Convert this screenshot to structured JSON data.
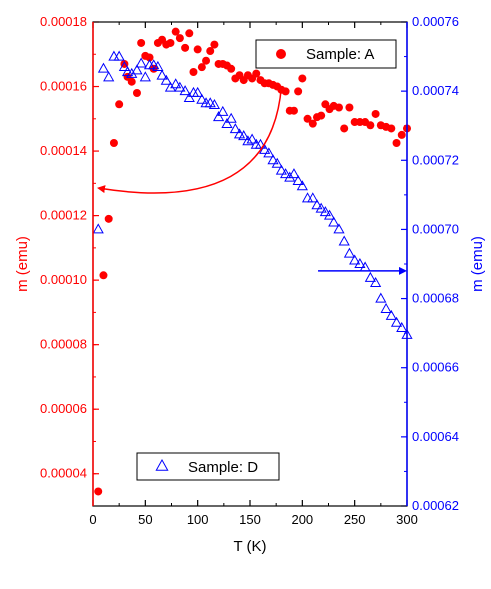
{
  "chart_data": {
    "type": "scatter",
    "xlabel": "T (K)",
    "ylabel_left": "m (emu)",
    "ylabel_right": "m (emu)",
    "xlim": [
      0,
      300
    ],
    "ylim_left": [
      3e-05,
      0.00018
    ],
    "ylim_right": [
      0.00062,
      0.00076
    ],
    "x_ticks": [
      "0",
      "50",
      "100",
      "150",
      "200",
      "250",
      "300"
    ],
    "y_left_ticks": [
      "0.00004",
      "0.00006",
      "0.00008",
      "0.00010",
      "0.00012",
      "0.00014",
      "0.00016",
      "0.00018"
    ],
    "y_right_ticks": [
      "0.00062",
      "0.00064",
      "0.00066",
      "0.00068",
      "0.00070",
      "0.00072",
      "0.00074",
      "0.00076"
    ],
    "colors": {
      "left_axis": "#ff0000",
      "right_axis": "#0000ff",
      "frame": "#000000"
    },
    "grid": false,
    "series": [
      {
        "name": "Sample: A",
        "axis": "left",
        "marker": "filled-circle",
        "color": "#ff0000",
        "legend_position": "top-right",
        "x": [
          5,
          10,
          15,
          20,
          25,
          30,
          33,
          37,
          42,
          46,
          50,
          54,
          58,
          62,
          66,
          70,
          74,
          79,
          83,
          88,
          92,
          96,
          100,
          104,
          108,
          112,
          116,
          120,
          124,
          128,
          132,
          136,
          140,
          144,
          148,
          152,
          156,
          160,
          164,
          168,
          172,
          176,
          180,
          184,
          188,
          192,
          196,
          200,
          205,
          210,
          214,
          218,
          222,
          226,
          230,
          235,
          240,
          245,
          250,
          255,
          260,
          265,
          270,
          275,
          280,
          285,
          290,
          295,
          300
        ],
        "y": [
          3.45e-05,
          0.0001015,
          0.000119,
          0.0001425,
          0.0001545,
          0.000167,
          0.000163,
          0.0001615,
          0.000158,
          0.0001735,
          0.0001695,
          0.000169,
          0.0001655,
          0.0001735,
          0.0001745,
          0.000173,
          0.0001735,
          0.000177,
          0.000175,
          0.000172,
          0.0001765,
          0.0001645,
          0.0001715,
          0.000166,
          0.000168,
          0.000171,
          0.000173,
          0.000167,
          0.000167,
          0.0001665,
          0.0001655,
          0.0001625,
          0.0001635,
          0.000162,
          0.0001635,
          0.0001625,
          0.000164,
          0.000162,
          0.000161,
          0.000161,
          0.0001605,
          0.00016,
          0.000159,
          0.0001585,
          0.0001525,
          0.0001525,
          0.0001585,
          0.0001625,
          0.00015,
          0.0001485,
          0.0001505,
          0.000151,
          0.0001545,
          0.000153,
          0.000154,
          0.0001535,
          0.000147,
          0.0001535,
          0.000149,
          0.000149,
          0.000149,
          0.000148,
          0.0001515,
          0.000148,
          0.0001475,
          0.000147,
          0.0001425,
          0.000145,
          0.000147
        ]
      },
      {
        "name": "Sample: D",
        "axis": "right",
        "marker": "open-triangle",
        "color": "#0000ff",
        "legend_position": "bottom-left",
        "x": [
          5,
          10,
          15,
          20,
          25,
          30,
          33,
          37,
          42,
          46,
          50,
          54,
          58,
          62,
          66,
          70,
          74,
          79,
          83,
          88,
          92,
          96,
          100,
          104,
          108,
          112,
          116,
          120,
          124,
          128,
          132,
          136,
          140,
          144,
          148,
          152,
          156,
          160,
          164,
          168,
          172,
          176,
          180,
          184,
          188,
          192,
          196,
          200,
          205,
          210,
          214,
          218,
          222,
          226,
          230,
          235,
          240,
          245,
          250,
          255,
          260,
          265,
          270,
          275,
          280,
          285,
          290,
          295,
          300
        ],
        "y": [
          0.0007,
          0.0007465,
          0.000744,
          0.00075,
          0.00075,
          0.000747,
          0.0007455,
          0.000745,
          0.000746,
          0.000748,
          0.000744,
          0.0007475,
          0.0007475,
          0.000747,
          0.0007445,
          0.000743,
          0.000741,
          0.000742,
          0.000741,
          0.00074,
          0.000738,
          0.0007395,
          0.0007395,
          0.0007375,
          0.0007365,
          0.0007365,
          0.000736,
          0.0007325,
          0.000734,
          0.0007305,
          0.000732,
          0.000729,
          0.0007275,
          0.000727,
          0.0007255,
          0.000726,
          0.0007245,
          0.0007245,
          0.000723,
          0.000722,
          0.00072,
          0.000719,
          0.000717,
          0.000716,
          0.000715,
          0.000716,
          0.000714,
          0.0007125,
          0.000709,
          0.000709,
          0.000707,
          0.000706,
          0.000705,
          0.000704,
          0.000702,
          0.0007,
          0.0006965,
          0.000693,
          0.000691,
          0.00069,
          0.000689,
          0.000686,
          0.0006845,
          0.00068,
          0.000677,
          0.000675,
          0.000673,
          0.0006715,
          0.0006695
        ]
      }
    ],
    "annotations": [
      {
        "type": "arrow",
        "direction": "to-left-axis",
        "color": "#ff0000"
      },
      {
        "type": "arrow",
        "direction": "to-right-axis",
        "color": "#0000ff"
      }
    ]
  }
}
